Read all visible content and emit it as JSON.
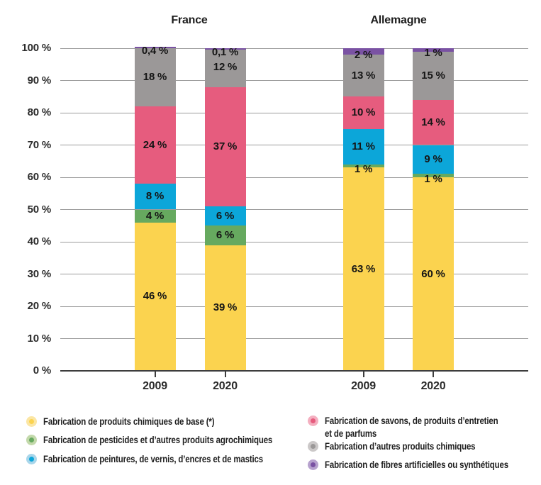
{
  "chart_data": {
    "type": "bar",
    "stacked": true,
    "unit": "%",
    "grid": true,
    "legend_position": "bottom",
    "ylim": [
      0,
      100
    ],
    "y_ticks": [
      "0 %",
      "10 %",
      "20 %",
      "30 %",
      "40 %",
      "50 %",
      "60 %",
      "70 %",
      "80 %",
      "90 %",
      "100 %"
    ],
    "series": [
      {
        "name": "Fabrication de produits chimiques de base (*)",
        "color": "#FBD34F",
        "halo": "#FBE6A4"
      },
      {
        "name": "Fabrication de pesticides et d’autres produits agrochimiques",
        "color": "#66A95F",
        "halo": "#C3D9AB"
      },
      {
        "name": "Fabrication de peintures, de vernis, d’encres et de mastics",
        "color": "#0CA6D9",
        "halo": "#A9D6EA"
      },
      {
        "name": "Fabrication de savons, de produits d’entretien et de parfums",
        "name_lines": [
          "Fabrication de savons, de produits d’entretien",
          "et de parfums"
        ],
        "color": "#E65C7E",
        "halo": "#F4AFC0"
      },
      {
        "name": "Fabrication d’autres produits chimiques",
        "color": "#9B9898",
        "halo": "#CBC8C8"
      },
      {
        "name": "Fabrication de fibres artificielles ou synthétiques",
        "color": "#7A52A3",
        "halo": "#B7A2CE"
      }
    ],
    "legend_columns": [
      [
        0,
        1,
        2
      ],
      [
        3,
        4,
        5
      ]
    ],
    "groups": [
      {
        "label": "France",
        "bars": [
          {
            "label": "2009",
            "values": [
              46,
              4,
              8,
              24,
              18,
              0.4
            ],
            "value_labels": [
              "46 %",
              "4 %",
              "8 %",
              "24 %",
              "18 %",
              "0,4 %"
            ]
          },
          {
            "label": "2020",
            "values": [
              39,
              6,
              6,
              37,
              12,
              0.1
            ],
            "value_labels": [
              "39 %",
              "6 %",
              "6 %",
              "37 %",
              "12 %",
              "0,1 %"
            ]
          }
        ]
      },
      {
        "label": "Allemagne",
        "bars": [
          {
            "label": "2009",
            "values": [
              63,
              1,
              11,
              10,
              13,
              2
            ],
            "value_labels": [
              "63 %",
              "1 %",
              "11 %",
              "10 %",
              "13 %",
              "2 %"
            ]
          },
          {
            "label": "2020",
            "values": [
              60,
              1,
              9,
              14,
              15,
              1
            ],
            "value_labels": [
              "60 %",
              "1 %",
              "9 %",
              "14 %",
              "15 %",
              "1 %"
            ]
          }
        ]
      }
    ]
  }
}
